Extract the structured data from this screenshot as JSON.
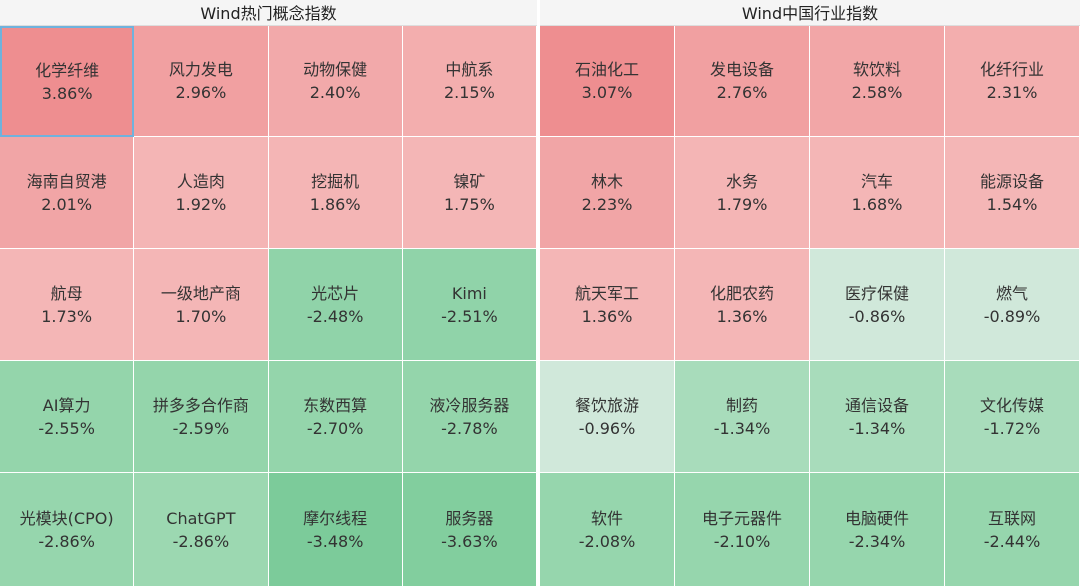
{
  "panels": [
    {
      "title": "Wind热门概念指数",
      "cells": [
        {
          "name": "化学纤维",
          "change": "3.86%",
          "color": "#ee8e90",
          "selected": true
        },
        {
          "name": "风力发电",
          "change": "2.96%",
          "color": "#f1a0a1"
        },
        {
          "name": "动物保健",
          "change": "2.40%",
          "color": "#f2a9aa"
        },
        {
          "name": "中航系",
          "change": "2.15%",
          "color": "#f3aeae"
        },
        {
          "name": "海南自贸港",
          "change": "2.01%",
          "color": "#f1a5a6"
        },
        {
          "name": "人造肉",
          "change": "1.92%",
          "color": "#f4b5b5"
        },
        {
          "name": "挖掘机",
          "change": "1.86%",
          "color": "#f4b5b5"
        },
        {
          "name": "镍矿",
          "change": "1.75%",
          "color": "#f4b6b6"
        },
        {
          "name": "航母",
          "change": "1.73%",
          "color": "#f4b6b6"
        },
        {
          "name": "一级地产商",
          "change": "1.70%",
          "color": "#f4b6b6"
        },
        {
          "name": "光芯片",
          "change": "-2.48%",
          "color": "#90d3a9"
        },
        {
          "name": "Kimi",
          "change": "-2.51%",
          "color": "#90d3a9"
        },
        {
          "name": "AI算力",
          "change": "-2.55%",
          "color": "#94d5ab"
        },
        {
          "name": "拼多多合作商",
          "change": "-2.59%",
          "color": "#94d5ab"
        },
        {
          "name": "东数西算",
          "change": "-2.70%",
          "color": "#94d5ab"
        },
        {
          "name": "液冷服务器",
          "change": "-2.78%",
          "color": "#94d5ab"
        },
        {
          "name": "光模块(CPO)",
          "change": "-2.86%",
          "color": "#96d6ad"
        },
        {
          "name": "ChatGPT",
          "change": "-2.86%",
          "color": "#9cd8b1"
        },
        {
          "name": "摩尔线程",
          "change": "-3.48%",
          "color": "#7ccb9a"
        },
        {
          "name": "服务器",
          "change": "-3.63%",
          "color": "#82ce9e"
        }
      ]
    },
    {
      "title": "Wind中国行业指数",
      "cells": [
        {
          "name": "石油化工",
          "change": "3.07%",
          "color": "#ee8e90"
        },
        {
          "name": "发电设备",
          "change": "2.76%",
          "color": "#f1a0a1"
        },
        {
          "name": "软饮料",
          "change": "2.58%",
          "color": "#f2a6a7"
        },
        {
          "name": "化纤行业",
          "change": "2.31%",
          "color": "#f3aeae"
        },
        {
          "name": "林木",
          "change": "2.23%",
          "color": "#f1a5a6"
        },
        {
          "name": "水务",
          "change": "1.79%",
          "color": "#f4b5b5"
        },
        {
          "name": "汽车",
          "change": "1.68%",
          "color": "#f4b6b6"
        },
        {
          "name": "能源设备",
          "change": "1.54%",
          "color": "#f4b6b6"
        },
        {
          "name": "航天军工",
          "change": "1.36%",
          "color": "#f4b6b6"
        },
        {
          "name": "化肥农药",
          "change": "1.36%",
          "color": "#f4b6b6"
        },
        {
          "name": "医疗保健",
          "change": "-0.86%",
          "color": "#d0e8da"
        },
        {
          "name": "燃气",
          "change": "-0.89%",
          "color": "#d0e8da"
        },
        {
          "name": "餐饮旅游",
          "change": "-0.96%",
          "color": "#d0e8da"
        },
        {
          "name": "制药",
          "change": "-1.34%",
          "color": "#a8dcbb"
        },
        {
          "name": "通信设备",
          "change": "-1.34%",
          "color": "#a8dcbb"
        },
        {
          "name": "文化传媒",
          "change": "-1.72%",
          "color": "#a8dcbb"
        },
        {
          "name": "软件",
          "change": "-2.08%",
          "color": "#96d6ad"
        },
        {
          "name": "电子元器件",
          "change": "-2.10%",
          "color": "#96d6ad"
        },
        {
          "name": "电脑硬件",
          "change": "-2.34%",
          "color": "#96d6ad"
        },
        {
          "name": "互联网",
          "change": "-2.44%",
          "color": "#96d6ad"
        }
      ]
    }
  ]
}
